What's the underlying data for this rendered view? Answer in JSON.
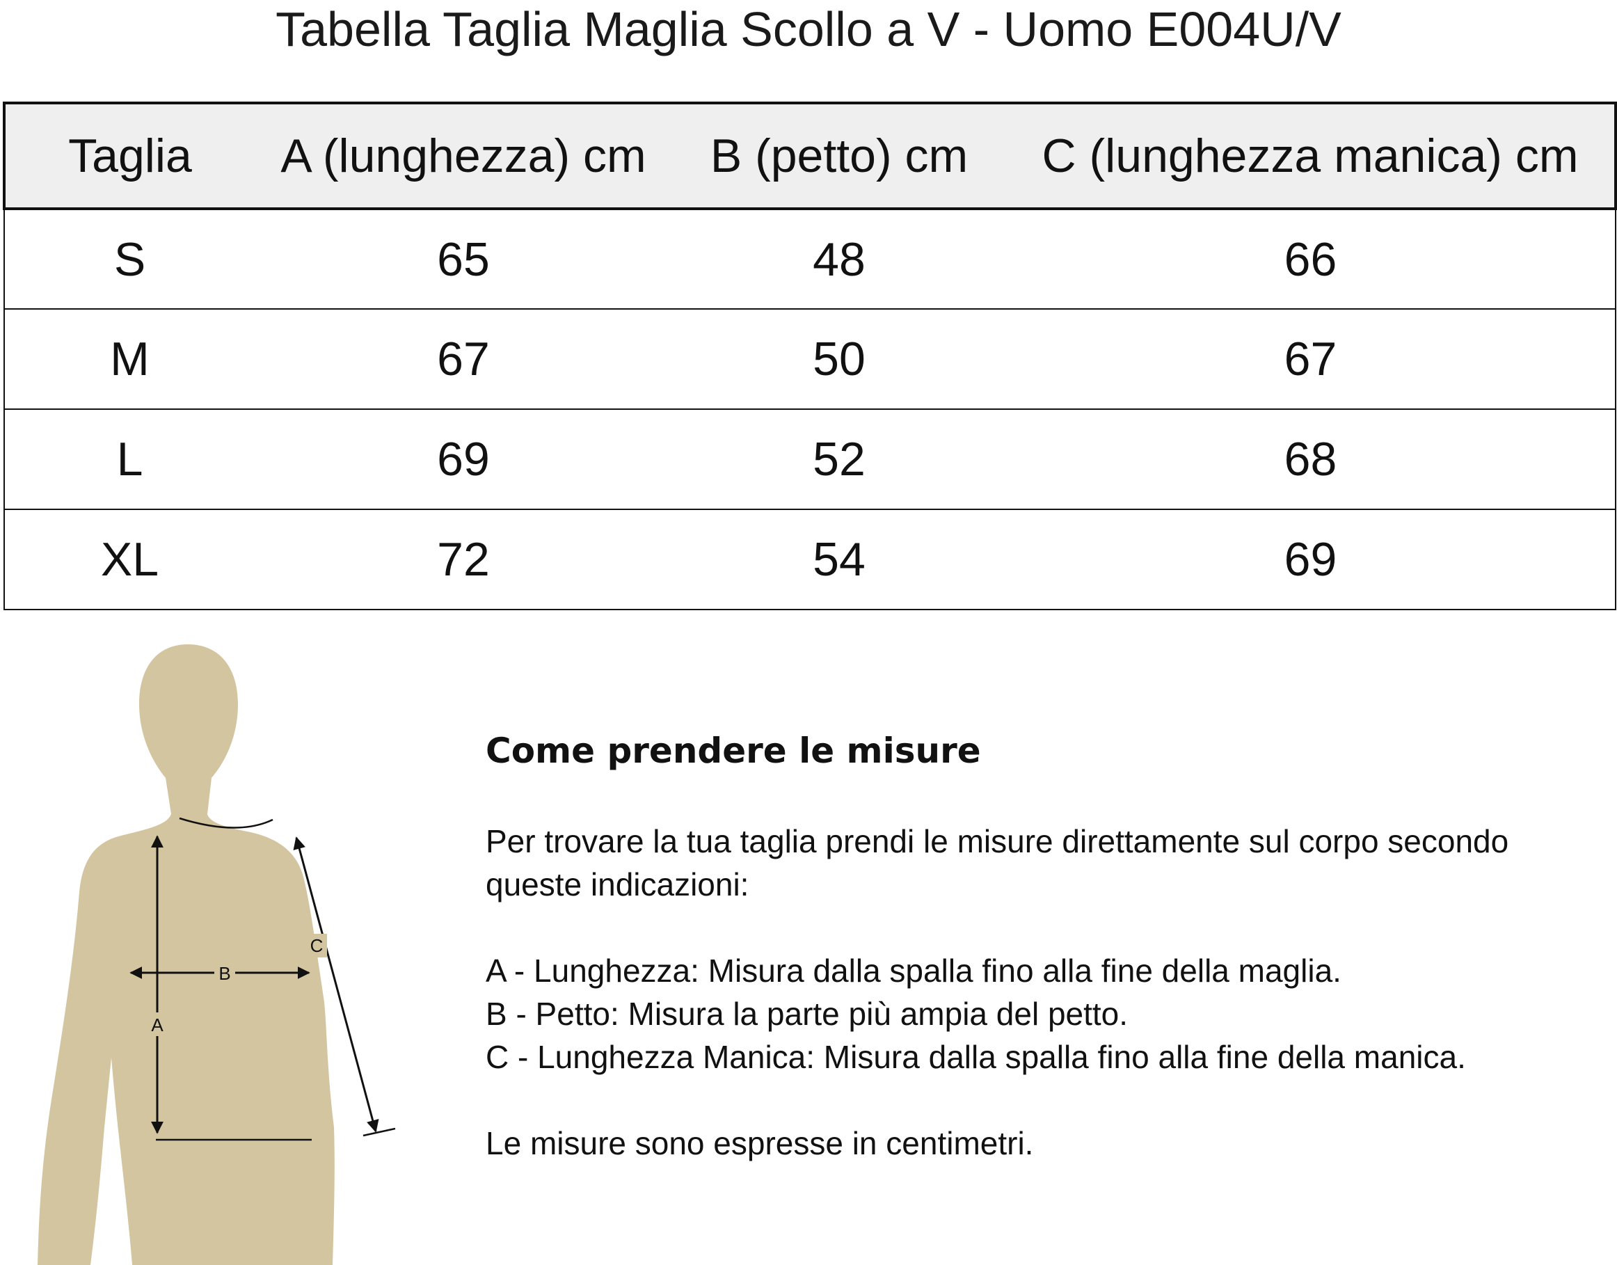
{
  "title": "Tabella Taglia Maglia Scollo a V - Uomo E004U/V",
  "table": {
    "headers": [
      "Taglia",
      "A (lunghezza) cm",
      "B (petto) cm",
      "C (lunghezza manica) cm"
    ],
    "rows": [
      [
        "S",
        "65",
        "48",
        "66"
      ],
      [
        "M",
        "67",
        "50",
        "67"
      ],
      [
        "L",
        "69",
        "52",
        "68"
      ],
      [
        "XL",
        "72",
        "54",
        "69"
      ]
    ]
  },
  "figure": {
    "labels": {
      "a": "A",
      "b": "B",
      "c": "C"
    },
    "body_color": "#d3c5a0"
  },
  "instructions": {
    "heading": "Come prendere le misure",
    "intro_line1": "Per trovare la tua taglia prendi le misure direttamente sul corpo secondo",
    "intro_line2": "queste indicazioni:",
    "items": [
      "A - Lunghezza: Misura dalla spalla fino alla fine della maglia.",
      "B - Petto: Misura la parte più ampia del petto.",
      "C - Lunghezza Manica: Misura dalla spalla fino alla fine della manica."
    ],
    "note": "Le misure sono espresse in centimetri."
  }
}
